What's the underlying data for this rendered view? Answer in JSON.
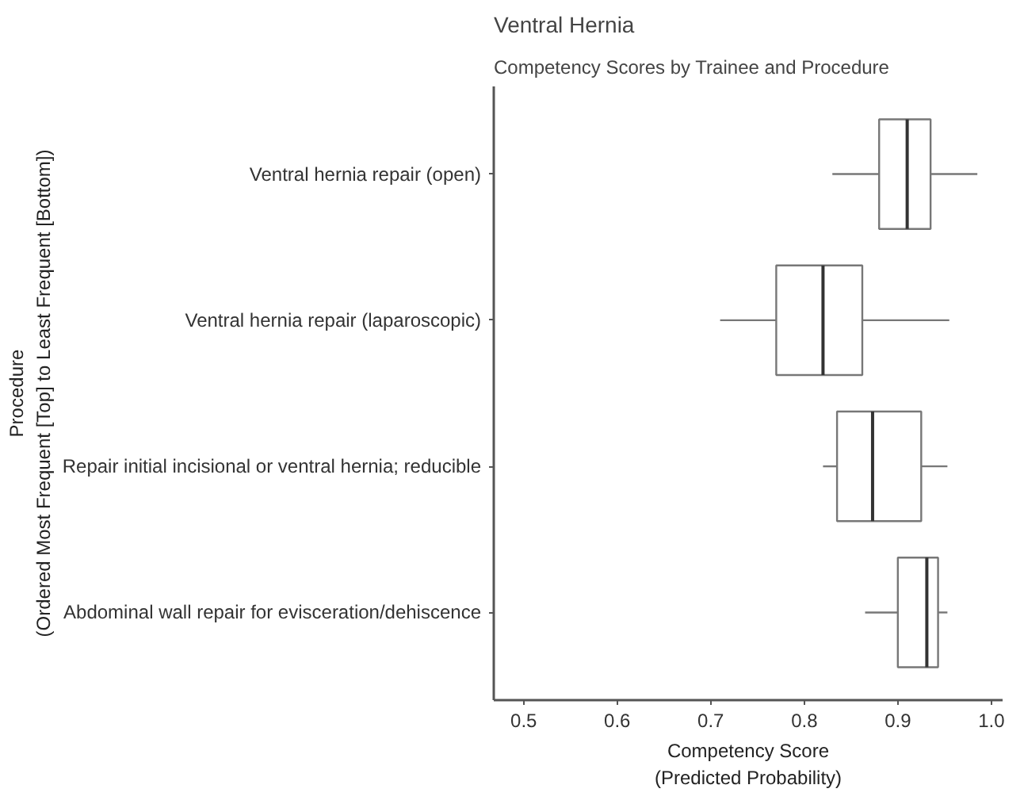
{
  "chart_data": {
    "type": "box",
    "title": "Ventral Hernia",
    "subtitle": "Competency Scores by Trainee and Procedure",
    "xlabel": "Competency Score\n(Predicted Probability)",
    "ylabel": "Procedure\n(Ordered Most Frequent [Top] to Least Frequent [Bottom])",
    "orientation": "horizontal",
    "categories": [
      "Ventral hernia repair (open)",
      "Ventral hernia repair (laparoscopic)",
      "Repair initial incisional or ventral hernia; reducible",
      "Abdominal wall repair for evisceration/dehiscence"
    ],
    "boxes": [
      {
        "low": 0.83,
        "q1": 0.88,
        "median": 0.91,
        "q3": 0.935,
        "high": 0.985
      },
      {
        "low": 0.71,
        "q1": 0.77,
        "median": 0.82,
        "q3": 0.862,
        "high": 0.955
      },
      {
        "low": 0.82,
        "q1": 0.835,
        "median": 0.873,
        "q3": 0.925,
        "high": 0.953
      },
      {
        "low": 0.865,
        "q1": 0.9,
        "median": 0.931,
        "q3": 0.943,
        "high": 0.953
      }
    ],
    "color": "#ffffff",
    "xlim": [
      0.468,
      1.012
    ],
    "xticks": [
      {
        "value": 0.5,
        "label": "0.5"
      },
      {
        "value": 0.6,
        "label": "0.6"
      },
      {
        "value": 0.7,
        "label": "0.7"
      },
      {
        "value": 0.8,
        "label": "0.8"
      },
      {
        "value": 0.9,
        "label": "0.9"
      },
      {
        "value": 1.0,
        "label": "1.0"
      }
    ],
    "grid": false
  }
}
